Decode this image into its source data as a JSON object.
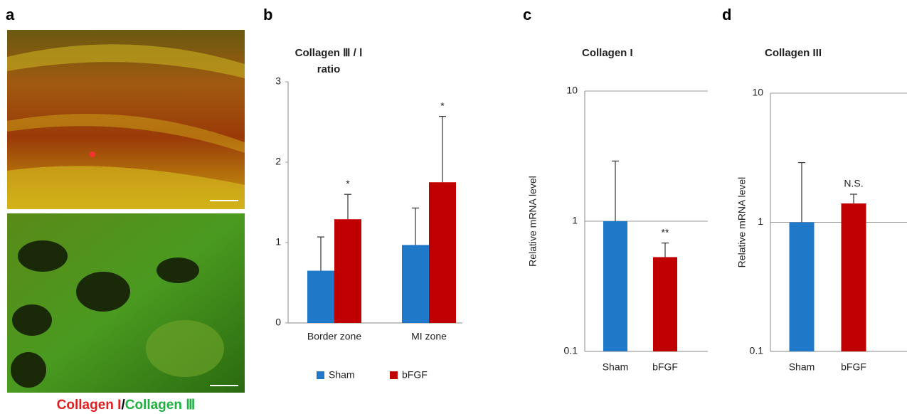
{
  "image_panel": {
    "label": "a",
    "caption": [
      "Collagen I",
      "/",
      "Collagen Ⅲ"
    ]
  },
  "chart_data": [
    {
      "type": "bar",
      "label": "b",
      "title": [
        "Collagen Ⅲ / Ⅰ",
        "ratio"
      ],
      "categories": [
        "Border zone",
        "MI zone"
      ],
      "series": [
        {
          "name": "Sham",
          "color": "#1f78c8",
          "values": [
            0.65,
            0.97
          ],
          "errors": [
            0.42,
            0.46
          ]
        },
        {
          "name": "bFGF",
          "color": "#c00000",
          "values": [
            1.29,
            1.75
          ],
          "errors": [
            0.31,
            0.82
          ],
          "annotations": [
            "*",
            "*"
          ]
        }
      ],
      "ylim": [
        0,
        3
      ],
      "yticks": [
        0,
        1,
        2,
        3
      ],
      "grid": false,
      "legend": "bottom"
    },
    {
      "type": "bar",
      "label": "c",
      "title": [
        "Collagen I"
      ],
      "ylabel": "Relative  mRNA level",
      "categories": [
        "Sham",
        "bFGF"
      ],
      "values": [
        1,
        0.53
      ],
      "errors": [
        1.9,
        0.15
      ],
      "colors": [
        "#1f78c8",
        "#c00000"
      ],
      "annotations": [
        null,
        "**"
      ],
      "log_scale": true,
      "ylim": [
        0.1,
        10
      ],
      "yticks": [
        0.1,
        1,
        10
      ],
      "grid": true
    },
    {
      "type": "bar",
      "label": "d",
      "title": [
        "Collagen III"
      ],
      "ylabel": "Relative  mRNA level",
      "categories": [
        "Sham",
        "bFGF"
      ],
      "values": [
        1,
        1.4
      ],
      "errors": [
        1.9,
        0.25
      ],
      "colors": [
        "#1f78c8",
        "#c00000"
      ],
      "annotations": [
        null,
        "N.S."
      ],
      "log_scale": true,
      "ylim": [
        0.1,
        10
      ],
      "yticks": [
        0.1,
        1,
        10
      ],
      "grid": true
    }
  ]
}
